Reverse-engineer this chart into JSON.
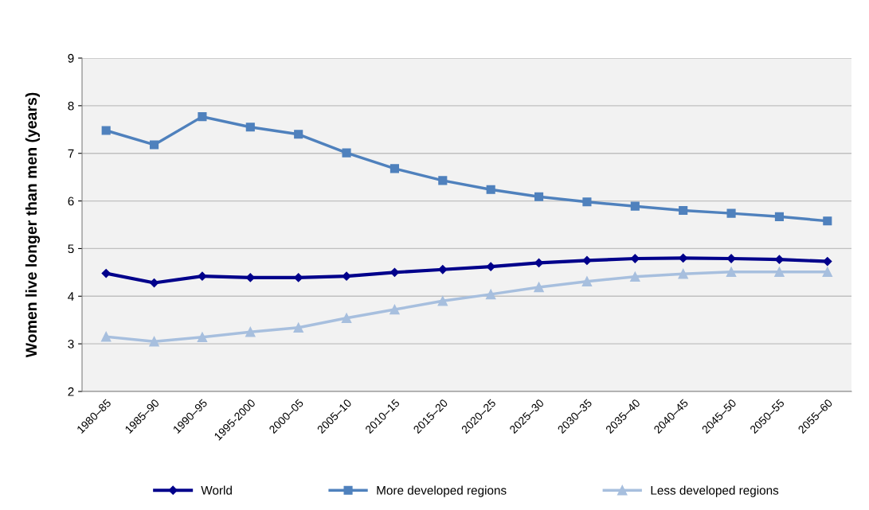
{
  "chart_data": {
    "type": "line",
    "ylabel": "Women live longer than men (years)",
    "categories": [
      "1980–85",
      "1985–90",
      "1990–95",
      "1995-2000",
      "2000–05",
      "2005–10",
      "2010–15",
      "2015–20",
      "2020–25",
      "2025–30",
      "2030–35",
      "2035–40",
      "2040–45",
      "2045–50",
      "2050–55",
      "2055–60"
    ],
    "series": [
      {
        "name": "World",
        "color": "#00008b",
        "marker": "diamond",
        "values": [
          4.48,
          4.28,
          4.42,
          4.39,
          4.39,
          4.42,
          4.5,
          4.56,
          4.62,
          4.7,
          4.75,
          4.79,
          4.8,
          4.79,
          4.77,
          4.73
        ]
      },
      {
        "name": "More developed regions",
        "color": "#4f81bd",
        "marker": "square",
        "values": [
          7.48,
          7.18,
          7.77,
          7.55,
          7.4,
          7.01,
          6.68,
          6.43,
          6.24,
          6.09,
          5.98,
          5.89,
          5.8,
          5.74,
          5.67,
          5.58
        ]
      },
      {
        "name": "Less developed regions",
        "color": "#a7bfde",
        "marker": "triangle",
        "values": [
          3.15,
          3.05,
          3.14,
          3.25,
          3.34,
          3.54,
          3.72,
          3.9,
          4.04,
          4.19,
          4.31,
          4.41,
          4.47,
          4.51,
          4.51,
          4.51
        ]
      }
    ],
    "ylim": [
      2,
      9
    ],
    "yticks": [
      2,
      3,
      4,
      5,
      6,
      7,
      8,
      9
    ],
    "grid": "y",
    "legend": "bottom",
    "line_style": "solid"
  }
}
